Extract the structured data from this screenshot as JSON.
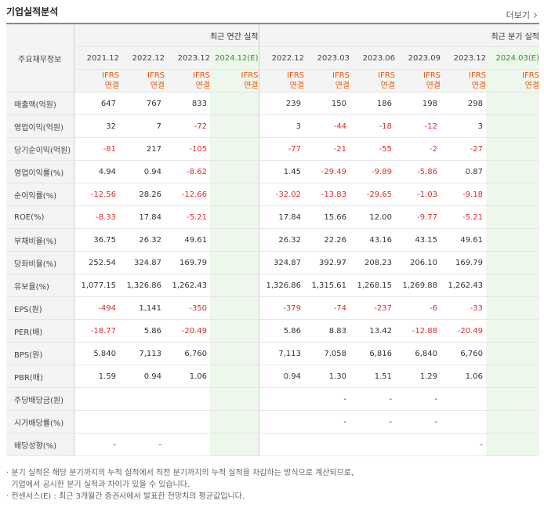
{
  "header": {
    "title": "기업실적분석",
    "more_label": "더보기"
  },
  "table": {
    "row_header_label": "주요재무정보",
    "group_annual": "최근 연간 실적",
    "group_quarter": "최근 분기 실적",
    "annual_periods": [
      "2021.12",
      "2022.12",
      "2023.12",
      "2024.12(E)"
    ],
    "quarter_periods": [
      "2022.12",
      "2023.03",
      "2023.06",
      "2023.09",
      "2023.12",
      "2024.03(E)"
    ],
    "basis_top": "IFRS",
    "basis_bottom": "연결",
    "rows": [
      {
        "label": "매출액(억원)",
        "annual": [
          "647",
          "767",
          "833",
          ""
        ],
        "quarter": [
          "239",
          "150",
          "186",
          "198",
          "298",
          ""
        ]
      },
      {
        "label": "영업이익(억원)",
        "annual": [
          "32",
          "7",
          "-72",
          ""
        ],
        "quarter": [
          "3",
          "-44",
          "-18",
          "-12",
          "3",
          ""
        ]
      },
      {
        "label": "당기순이익(억원)",
        "annual": [
          "-81",
          "217",
          "-105",
          ""
        ],
        "quarter": [
          "-77",
          "-21",
          "-55",
          "-2",
          "-27",
          ""
        ]
      },
      {
        "label": "영업이익률(%)",
        "annual": [
          "4.94",
          "0.94",
          "-8.62",
          ""
        ],
        "quarter": [
          "1.45",
          "-29.49",
          "-9.89",
          "-5.86",
          "0.87",
          ""
        ]
      },
      {
        "label": "순이익률(%)",
        "annual": [
          "-12.56",
          "28.26",
          "-12.66",
          ""
        ],
        "quarter": [
          "-32.02",
          "-13.83",
          "-29.65",
          "-1.03",
          "-9.18",
          ""
        ]
      },
      {
        "label": "ROE(%)",
        "annual": [
          "-8.33",
          "17.84",
          "-5.21",
          ""
        ],
        "quarter": [
          "17.84",
          "15.66",
          "12.00",
          "-9.77",
          "-5.21",
          ""
        ]
      },
      {
        "label": "부채비율(%)",
        "annual": [
          "36.75",
          "26.32",
          "49.61",
          ""
        ],
        "quarter": [
          "26.32",
          "22.26",
          "43.16",
          "43.15",
          "49.61",
          ""
        ]
      },
      {
        "label": "당좌비율(%)",
        "annual": [
          "252.54",
          "324.87",
          "169.79",
          ""
        ],
        "quarter": [
          "324.87",
          "392.97",
          "208.23",
          "206.10",
          "169.79",
          ""
        ]
      },
      {
        "label": "유보율(%)",
        "annual": [
          "1,077.15",
          "1,326.86",
          "1,262.43",
          ""
        ],
        "quarter": [
          "1,326.86",
          "1,315.61",
          "1,268.15",
          "1,269.88",
          "1,262.43",
          ""
        ]
      },
      {
        "label": "EPS(원)",
        "annual": [
          "-494",
          "1,141",
          "-350",
          ""
        ],
        "quarter": [
          "-379",
          "-74",
          "-237",
          "-6",
          "-33",
          ""
        ]
      },
      {
        "label": "PER(배)",
        "annual": [
          "-18.77",
          "5.86",
          "-20.49",
          ""
        ],
        "quarter": [
          "5.86",
          "8.83",
          "13.42",
          "-12.88",
          "-20.49",
          ""
        ]
      },
      {
        "label": "BPS(원)",
        "annual": [
          "5,840",
          "7,113",
          "6,760",
          ""
        ],
        "quarter": [
          "7,113",
          "7,058",
          "6,816",
          "6,840",
          "6,760",
          ""
        ]
      },
      {
        "label": "PBR(배)",
        "annual": [
          "1.59",
          "0.94",
          "1.06",
          ""
        ],
        "quarter": [
          "0.94",
          "1.30",
          "1.51",
          "1.29",
          "1.06",
          ""
        ]
      },
      {
        "label": "주당배당금(원)",
        "annual": [
          "",
          "",
          "",
          ""
        ],
        "quarter": [
          "",
          "-",
          "-",
          "-",
          "",
          ""
        ]
      },
      {
        "label": "시가배당률(%)",
        "annual": [
          "",
          "",
          "",
          ""
        ],
        "quarter": [
          "",
          "-",
          "-",
          "-",
          "",
          ""
        ]
      },
      {
        "label": "배당성향(%)",
        "annual": [
          "-",
          "-",
          "",
          ""
        ],
        "quarter": [
          "",
          "",
          "",
          "",
          "-",
          ""
        ]
      }
    ]
  },
  "notes": {
    "line1": "· 분기 실적은 해당 분기까지의 누적 실적에서 직전 분기까지의 누적 실적을 차감하는 방식으로 계산되므로,",
    "line2": "  기업에서 공시한 분기 실적과 차이가 있을 수 있습니다.",
    "line3": "· 컨센서스(E) : 최근 3개월간 증권사에서 발표한 전망치의 평균값입니다."
  },
  "colors": {
    "negative": "#e02b2b",
    "basis": "#e8590c",
    "estimate_bg": "#f1f8ef",
    "estimate_text": "#3a8f2f"
  }
}
